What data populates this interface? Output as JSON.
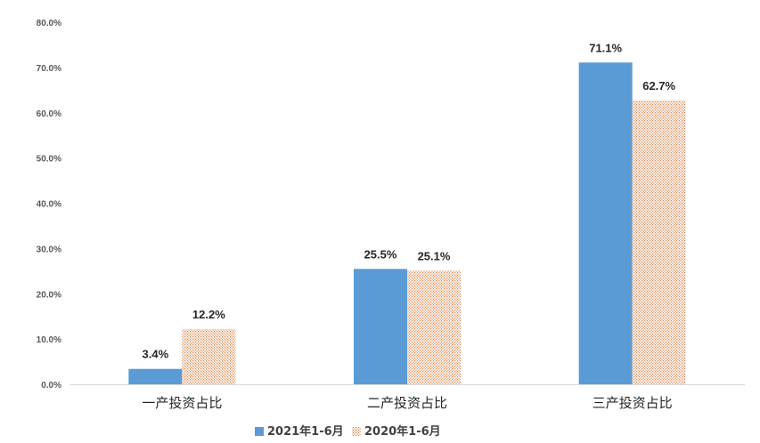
{
  "chart_data": {
    "type": "bar",
    "title": "",
    "xlabel": "",
    "ylabel": "",
    "categories": [
      "一产投资占比",
      "二产投资占比",
      "三产投资占比"
    ],
    "series": [
      {
        "name": "2021年1-6月",
        "values": [
          3.4,
          25.5,
          71.1
        ],
        "labels": [
          "3.4%",
          "25.5%",
          "71.1%"
        ],
        "color": "#5B9BD5",
        "fill": "solid"
      },
      {
        "name": "2020年1-6月",
        "values": [
          12.2,
          25.1,
          62.7
        ],
        "labels": [
          "12.2%",
          "25.1%",
          "62.7%"
        ],
        "color": "#ED7D31",
        "fill": "dotted-pattern"
      }
    ],
    "ylim": [
      0,
      80
    ],
    "yticks": [
      0,
      10,
      20,
      30,
      40,
      50,
      60,
      70,
      80
    ],
    "ytick_labels": [
      "0.0%",
      "10.0%",
      "20.0%",
      "30.0%",
      "40.0%",
      "50.0%",
      "60.0%",
      "70.0%",
      "80.0%"
    ],
    "grid": false,
    "legend_position": "bottom"
  }
}
